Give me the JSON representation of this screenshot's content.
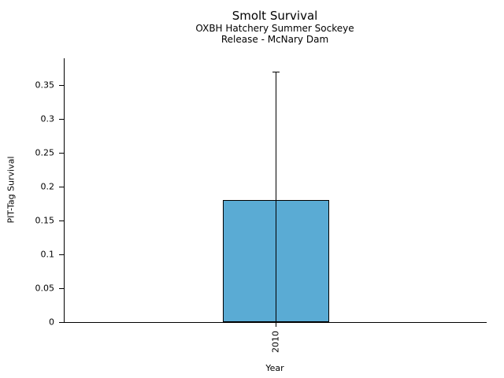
{
  "chart_data": {
    "type": "bar",
    "title": "Smolt Survival",
    "subtitle_line1": "OXBH Hatchery Summer Sockeye",
    "subtitle_line2": "Release - McNary Dam",
    "xlabel": "Year",
    "ylabel": "PIT-Tag Survival",
    "categories": [
      "2010"
    ],
    "values": [
      0.18
    ],
    "error_upper": [
      0.37
    ],
    "error_lower": [
      0
    ],
    "ylim": [
      0,
      0.39
    ],
    "yticks": [
      0,
      0.05,
      0.1,
      0.15,
      0.2,
      0.25,
      0.3,
      0.35
    ],
    "ytick_labels": [
      "0",
      "0.05",
      "0.1",
      "0.15",
      "0.2",
      "0.25",
      "0.3",
      "0.35"
    ],
    "xtick_rotation_deg": 90,
    "grid": false,
    "legend": null,
    "colors": {
      "bar_fill": "#5AABD4",
      "bar_edge": "#000000",
      "axis": "#000000",
      "text": "#000000",
      "background": "#ffffff"
    }
  }
}
